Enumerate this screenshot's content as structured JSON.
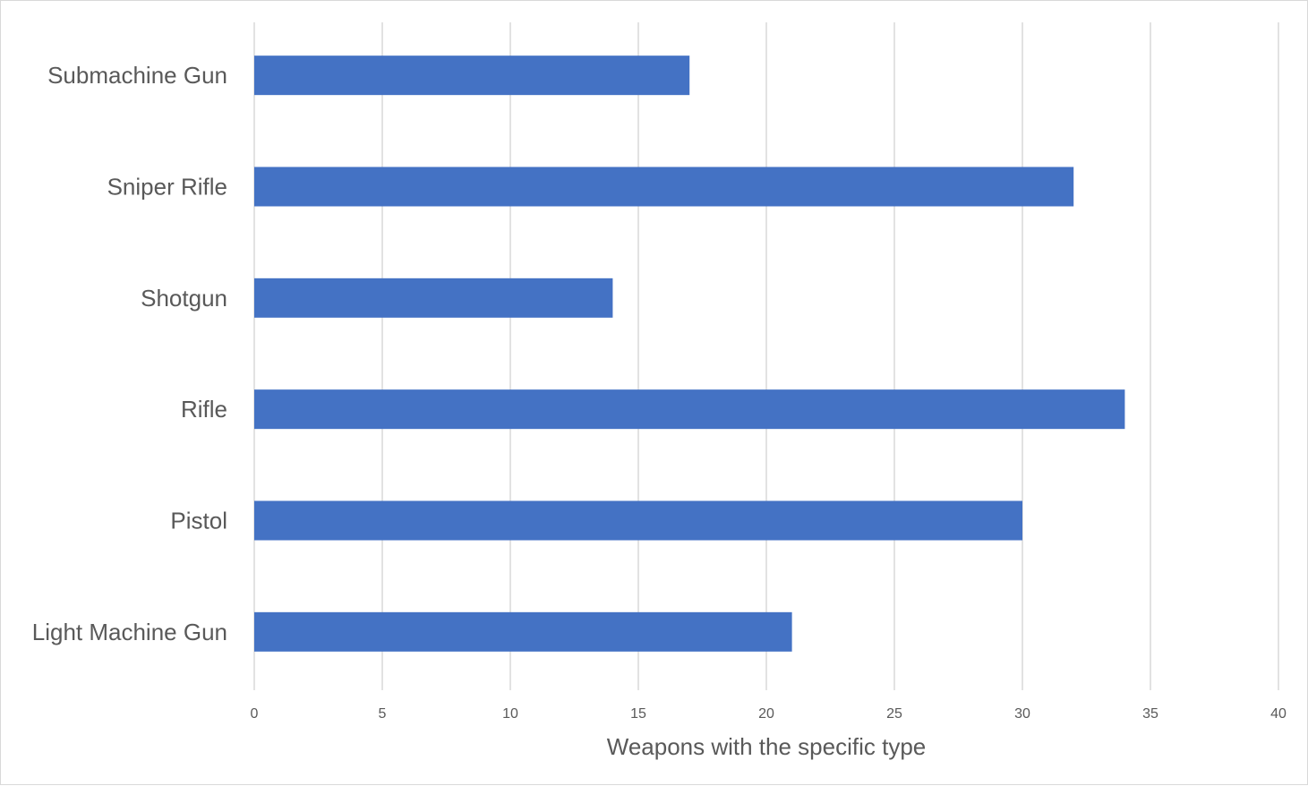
{
  "chart_data": {
    "type": "bar",
    "orientation": "horizontal",
    "title": "",
    "xlabel": "Weapons with the specific type",
    "ylabel": "",
    "categories": [
      "Submachine Gun",
      "Sniper Rifle",
      "Shotgun",
      "Rifle",
      "Pistol",
      "Light Machine Gun"
    ],
    "values": [
      17,
      32,
      14,
      34,
      30,
      21
    ],
    "xlim": [
      0,
      40
    ],
    "xticks": [
      "0",
      "5",
      "10",
      "15",
      "20",
      "25",
      "30",
      "35",
      "40"
    ],
    "grid": "vertical",
    "legend": "none",
    "bar_color": "#4472c4"
  }
}
